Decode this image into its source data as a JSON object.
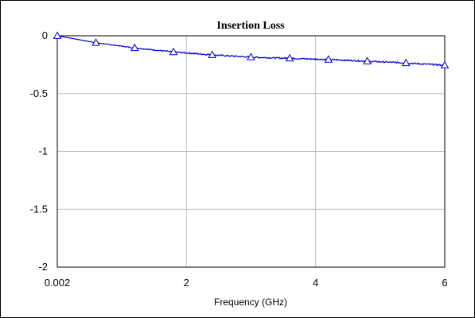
{
  "chart_data": {
    "type": "line",
    "title": "Insertion Loss",
    "xlabel": "Frequency (GHz)",
    "ylabel": "",
    "xlim": [
      0.002,
      6
    ],
    "ylim": [
      -2,
      0
    ],
    "xticks": [
      "0.002",
      "2",
      "4",
      "6"
    ],
    "yticks": [
      "0",
      "-0.5",
      "-1",
      "-1.5",
      "-2"
    ],
    "grid": true,
    "series": [
      {
        "color": "#0000cc",
        "marker": "triangle-open",
        "x": [
          0.002,
          0.6,
          1.2,
          1.8,
          2.4,
          3.0,
          3.6,
          4.2,
          4.8,
          5.4,
          6.0
        ],
        "y": [
          0.0,
          -0.06,
          -0.105,
          -0.14,
          -0.165,
          -0.185,
          -0.195,
          -0.205,
          -0.22,
          -0.235,
          -0.255
        ]
      }
    ]
  }
}
